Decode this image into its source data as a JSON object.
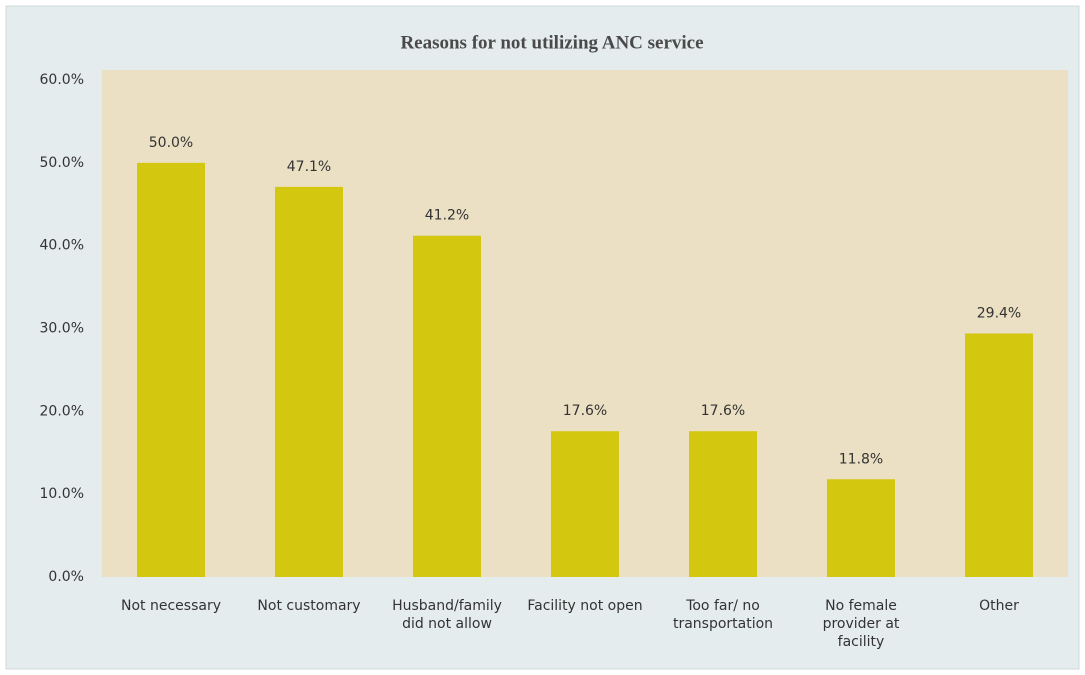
{
  "chart_data": {
    "type": "bar",
    "title": "Reasons for not utilizing ANC service",
    "categories": [
      "Not necessary",
      "Not customary",
      "Husband/family did not allow",
      "Facility not open",
      "Too far/ no transportation",
      "No female provider at facility",
      "Other"
    ],
    "values": [
      50.0,
      47.1,
      41.2,
      17.6,
      17.6,
      11.8,
      29.4
    ],
    "value_labels": [
      "50.0%",
      "47.1%",
      "41.2%",
      "17.6%",
      "17.6%",
      "11.8%",
      "29.4%"
    ],
    "color": "#d3c710",
    "ylim": [
      0,
      60
    ],
    "yticks": [
      {
        "value": 0,
        "label": "0.0%"
      },
      {
        "value": 10,
        "label": "10.0%"
      },
      {
        "value": 20,
        "label": "20.0%"
      },
      {
        "value": 30,
        "label": "30.0%"
      },
      {
        "value": 40,
        "label": "40.0%"
      },
      {
        "value": 50,
        "label": "50.0%"
      },
      {
        "value": 60,
        "label": "60.0%"
      }
    ],
    "grid": false
  }
}
